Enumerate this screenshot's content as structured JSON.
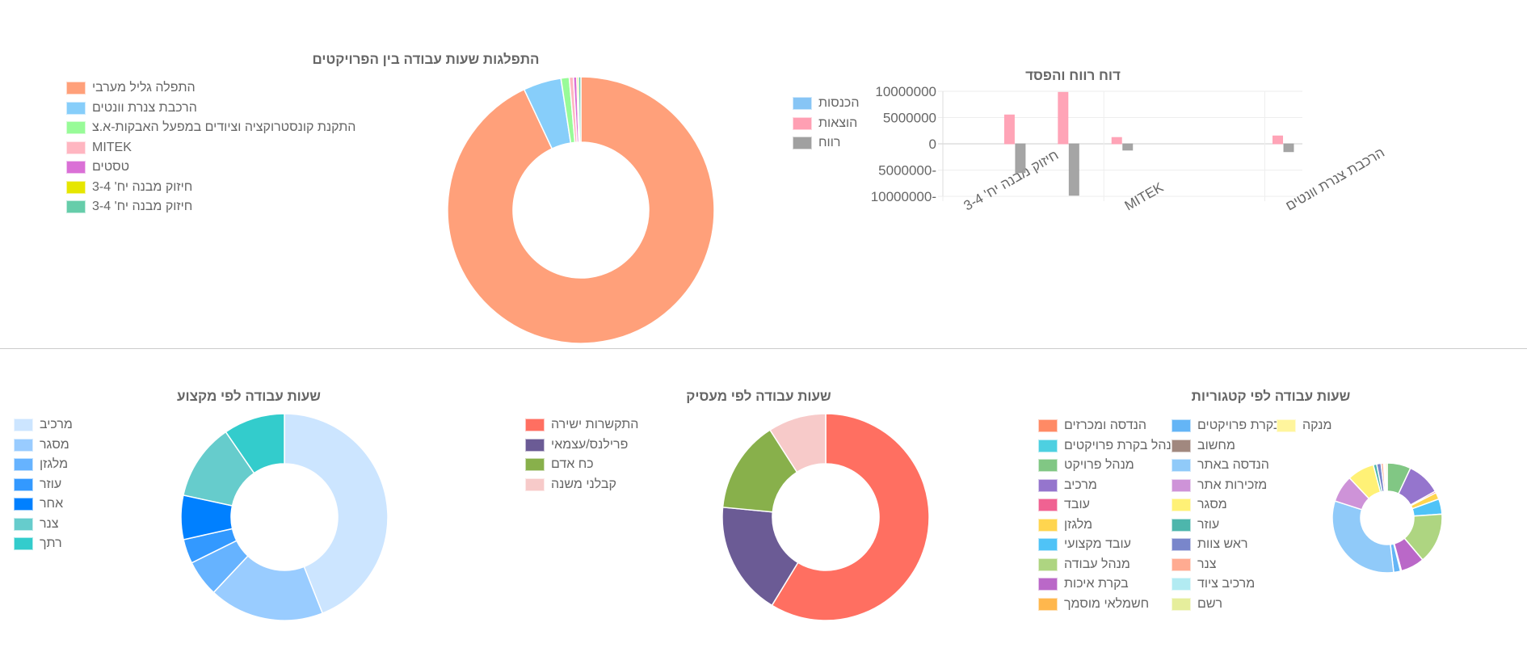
{
  "chart_data": [
    {
      "type": "pie",
      "title": "התפלגות שעות עבודה בין הפרויקטים",
      "labels": [
        "התפלה גליל מערבי",
        "הרכבת צנרת וונטים",
        "התקנת קונסטרוקציה וציודים במפעל האבקות-א.צ",
        "MITEK",
        "טסטים",
        " חיזוק מבנה יח' 3-4",
        " חיזוק מבנה יח' 3-4"
      ],
      "values": [
        93,
        4.6,
        1.0,
        0.5,
        0.4,
        0.2,
        0.3
      ],
      "colors": [
        "#ffa07a",
        "#87cefa",
        "#98fb98",
        "#ffb6c1",
        "#da70d6",
        "#e6e600",
        "#66cdaa"
      ],
      "legend": "left"
    },
    {
      "type": "bar",
      "title": "דוח רווח והפסד",
      "categories": [
        "חיזוק מבנה יח' 3-4",
        "",
        "",
        "MITEK",
        "",
        "",
        "הרכבת צנרת וונטים"
      ],
      "visible_tick_labels": [
        "חיזוק מבנה יח' 3-4",
        "MITEK",
        "הרכבת צנרת וונטים"
      ],
      "series": [
        {
          "name": "הכנסות",
          "color": "#87c5f5",
          "values": [
            0,
            0,
            0,
            0,
            0,
            0,
            0
          ]
        },
        {
          "name": "הוצאות",
          "color": "#ff9fb3",
          "values": [
            0,
            5500000,
            9800000,
            1200000,
            0,
            0,
            1500000
          ]
        },
        {
          "name": "רווח",
          "color": "#a0a0a0",
          "values": [
            0,
            -5500000,
            -9800000,
            -1200000,
            0,
            0,
            -1500000
          ]
        }
      ],
      "ylim": [
        -10000000,
        10000000
      ],
      "yticks": [
        "10000000",
        "5000000",
        "0",
        "5000000-",
        "10000000-"
      ],
      "grid": true,
      "legend": "left"
    },
    {
      "type": "pie",
      "title": "שעות עבודה לפי מקצוע",
      "labels": [
        "מרכיב",
        "מסגר",
        "מלגזן",
        "עוזר",
        "אחר",
        "צנר",
        "רתך"
      ],
      "values": [
        44,
        18,
        5.7,
        3.8,
        6.9,
        12,
        9.6
      ],
      "colors": [
        "#cce5ff",
        "#99ccff",
        "#66b3ff",
        "#3399ff",
        "#0080ff",
        "#66cccc",
        "#33cccc"
      ],
      "legend": "left"
    },
    {
      "type": "pie",
      "title": "שעות עבודה לפי מעסיק",
      "labels": [
        "התקשרות ישירה",
        "פרילנס/עצמאי",
        "כח אדם",
        "קבלני משנה"
      ],
      "values": [
        59,
        17.9,
        14.5,
        9.1
      ],
      "colors": [
        "#ff6f61",
        "#6b5b95",
        "#88b04b",
        "#f7cac9"
      ],
      "legend": "left"
    },
    {
      "type": "pie",
      "title": "שעות עבודה לפי קטגוריות",
      "labels": [
        "הנדסה ומכרזים",
        "מנהל בקרת פרויקטים",
        "מנהל פרויקט",
        "מרכיב",
        "עובד",
        "מלגזן",
        "עובד מקצועי",
        "מנהל עבודה",
        "בקרת איכות",
        "חשמלאי מוסמך",
        "בקרת פרויקטים",
        "מחשוב",
        "הנדסה באתר",
        "מזכירות אתר",
        "מסגר",
        "עוזר",
        "ראש צוות",
        "צנר",
        "מרכיב ציוד",
        "רשם",
        "מנקה"
      ],
      "values": [
        0,
        0,
        7,
        10,
        0.5,
        2,
        4.5,
        15,
        7,
        0.3,
        2,
        0,
        32,
        8,
        8,
        1,
        1.3,
        0.7,
        0.3,
        0.3,
        0.5
      ],
      "colors": [
        "#ff8a65",
        "#4dd0e1",
        "#81c784",
        "#9575cd",
        "#f06292",
        "#ffd54f",
        "#4fc3f7",
        "#aed581",
        "#ba68c8",
        "#ffb74d",
        "#64b5f6",
        "#a1887f",
        "#90caf9",
        "#ce93d8",
        "#fff176",
        "#4db6ac",
        "#7986cb",
        "#ffab91",
        "#b2ebf2",
        "#e6ee9c",
        "#fff59d"
      ],
      "legend": "left"
    }
  ]
}
